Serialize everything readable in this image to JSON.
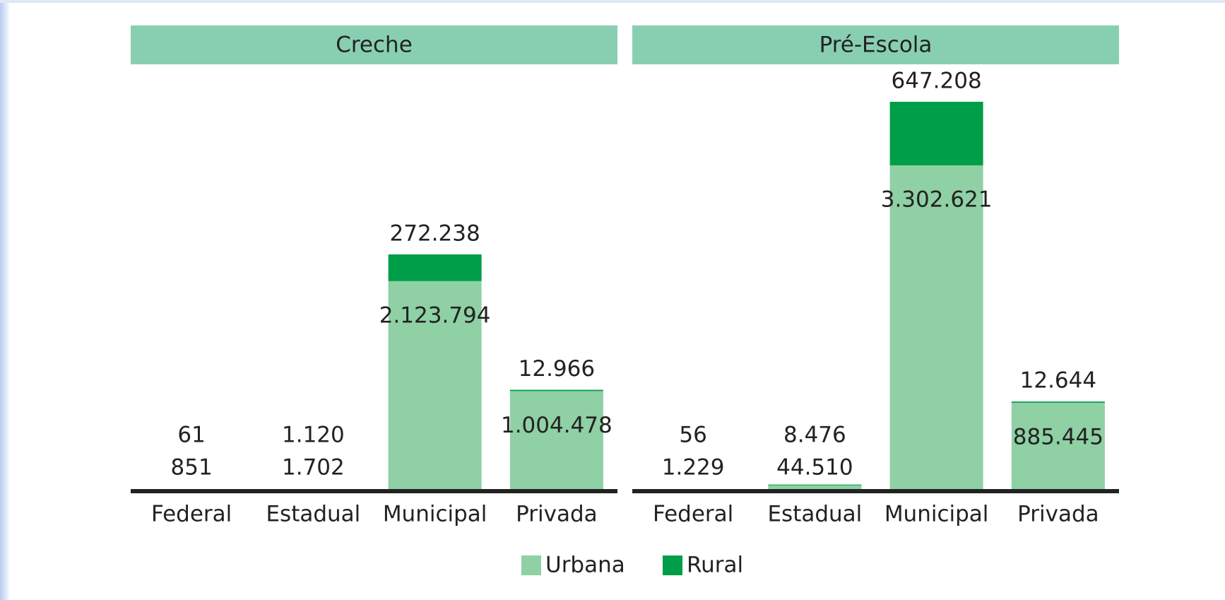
{
  "chart_data": [
    {
      "type": "bar",
      "title": "Creche",
      "stacked": true,
      "categories": [
        "Federal",
        "Estadual",
        "Municipal",
        "Privada"
      ],
      "series": [
        {
          "name": "Urbana",
          "color": "#8fd0a4",
          "values": [
            851,
            1702,
            2123794,
            1004478
          ],
          "value_labels": [
            "851",
            "1.702",
            "2.123.794",
            "1.004.478"
          ]
        },
        {
          "name": "Rural",
          "color": "#009e49",
          "values": [
            61,
            1120,
            272238,
            12966
          ],
          "value_labels": [
            "61",
            "1.120",
            "272.238",
            "12.966"
          ]
        }
      ]
    },
    {
      "type": "bar",
      "title": "Pré-Escola",
      "stacked": true,
      "categories": [
        "Federal",
        "Estadual",
        "Municipal",
        "Privada"
      ],
      "series": [
        {
          "color": "#8fd0a4",
          "values": [
            1229,
            44510,
            3302621,
            885445
          ],
          "value_labels": [
            "1.229",
            "44.510",
            "3.302.621",
            "885.445"
          ]
        },
        {
          "color": "#009e49",
          "values": [
            56,
            8476,
            647208,
            12644
          ],
          "value_labels": [
            "56",
            "8.476",
            "647.208",
            "12.644"
          ]
        }
      ]
    }
  ]
}
